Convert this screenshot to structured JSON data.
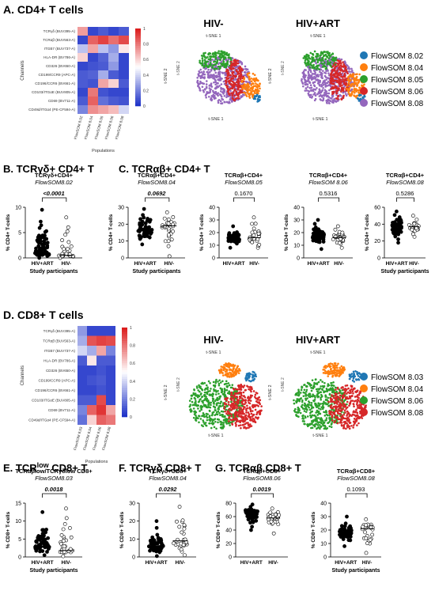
{
  "sections": {
    "A": "A. CD4+ T cells",
    "B": "B. TCRγδ+ CD4+ T",
    "C": "C. TCRαβ+ CD4+ T",
    "D": "D. CD8+ T cells",
    "E_pre": "E. TCR",
    "E_sup": "low",
    "E_post": " CD8+ T",
    "F": "F. TCRγδ CD8+ T",
    "G": "G. TCRαβ CD8+ T"
  },
  "heatmap_common": {
    "ylabel": "Channels",
    "xlabel": "Populations",
    "colorbar_ticks": [
      "1",
      "0.8",
      "0.6",
      "0.4",
      "0.2",
      "0"
    ]
  },
  "heatmap_cd4": {
    "rows": [
      "TCRγδ (BUV395-A)",
      "TCRαβ (BUV563-A)",
      "ITGB7 (BUV737-A)",
      "HLA-DR (BV786-A)",
      "CD326 (BV650-A)",
      "CD199/CCR9 (APC-A)",
      "CD196/CCR6 (BV661-A)",
      "CD103/ITGαE (BUV805-A)",
      "CD69 (BV711-A)",
      "CD49d/ITGα4 (PE-CF594-A)"
    ],
    "cols": [
      "FlowSOM 8.02",
      "FlowSOM 8.04",
      "FlowSOM 8.05",
      "FlowSOM 8.06",
      "FlowSOM 8.08"
    ],
    "values": [
      [
        0.72,
        0.05,
        0.1,
        0.05,
        0.1
      ],
      [
        0.05,
        0.85,
        0.92,
        0.82,
        0.9
      ],
      [
        0.35,
        0.7,
        0.35,
        0.25,
        0.55
      ],
      [
        0.6,
        0.05,
        0.12,
        0.3,
        0.05
      ],
      [
        0.05,
        0.08,
        0.1,
        0.25,
        0.05
      ],
      [
        0.1,
        0.12,
        0.3,
        0.1,
        0.05
      ],
      [
        0.1,
        0.08,
        0.7,
        0.6,
        0.1
      ],
      [
        0.05,
        0.8,
        0.08,
        0.05,
        0.05
      ],
      [
        0.1,
        0.85,
        0.15,
        0.1,
        0.08
      ],
      [
        0.2,
        0.75,
        0.7,
        0.65,
        0.4
      ]
    ]
  },
  "heatmap_cd8": {
    "rows": [
      "TCRγδ (BUV395-A)",
      "TCRαβ (BUV563-A)",
      "ITGB7 (BUV737-A)",
      "HLA-DR (BV786-A)",
      "CD326 (BV650-A)",
      "CD199/CCR9 (APC-A)",
      "CD196/CCR6 (BV661-A)",
      "CD103/ITGαE (BUV805-A)",
      "CD69 (BV711-A)",
      "CD49d/ITGα4 (PE-CF594-A)"
    ],
    "cols": [
      "FlowSOM 8.03",
      "FlowSOM 8.04",
      "FlowSOM 8.06",
      "FlowSOM 8.08"
    ],
    "values": [
      [
        0.25,
        0.05,
        0.05,
        0.05
      ],
      [
        0.3,
        0.88,
        0.92,
        0.9
      ],
      [
        0.4,
        0.3,
        0.7,
        0.2
      ],
      [
        0.1,
        0.55,
        0.1,
        0.1
      ],
      [
        0.05,
        0.05,
        0.08,
        0.05
      ],
      [
        0.05,
        0.08,
        0.1,
        0.05
      ],
      [
        0.05,
        0.05,
        0.08,
        0.05
      ],
      [
        0.1,
        0.1,
        0.9,
        0.05
      ],
      [
        0.2,
        0.85,
        0.95,
        0.7
      ],
      [
        0.15,
        0.6,
        0.85,
        0.8
      ]
    ]
  },
  "tsne_common": {
    "xlabel": "t-SNE 1",
    "ylabel": "t-SNE 2"
  },
  "tsne_cd4": [
    {
      "title": "HIV-"
    },
    {
      "title": "HIV+ART"
    }
  ],
  "tsne_cd8": [
    {
      "title": "HIV-"
    },
    {
      "title": "HIV+ART"
    }
  ],
  "legend_cd4": [
    {
      "label": "FlowSOM 8.02",
      "color": "#1f77b4"
    },
    {
      "label": "FlowSOM 8.04",
      "color": "#ff7f0e"
    },
    {
      "label": "FlowSOM 8.05",
      "color": "#2ca02c"
    },
    {
      "label": "FlowSOM 8.06",
      "color": "#d62728"
    },
    {
      "label": "FlowSOM 8.08",
      "color": "#9467bd"
    }
  ],
  "legend_cd8": [
    {
      "label": "FlowSOM 8.03",
      "color": "#1f77b4"
    },
    {
      "label": "FlowSOM 8.04",
      "color": "#ff7f0e"
    },
    {
      "label": "FlowSOM 8.06",
      "color": "#2ca02c"
    },
    {
      "label": "FlowSOM 8.08",
      "color": "#d62728"
    }
  ],
  "chart_data": [
    {
      "id": "B",
      "type": "scatter",
      "title": "TCRγδ+CD4+",
      "subtitle": "FlowSOM8.02",
      "pvalue": "<0.0001",
      "ylabel": "% CD4+ T-cells",
      "xlabel": "Study participants",
      "categories": [
        "HIV+ART",
        "HIV-"
      ],
      "ylim": [
        0,
        10
      ],
      "yticks": [
        0,
        5,
        10
      ],
      "n": [
        70,
        26
      ],
      "medians": [
        1.0,
        0.5
      ],
      "ranges": [
        [
          0.0,
          9.5
        ],
        [
          0.0,
          8.0
        ]
      ]
    },
    {
      "id": "C1",
      "type": "scatter",
      "title": "TCRαβ+CD4+",
      "subtitle": "FlowSOM8.04",
      "pvalue": "0.0692",
      "ylabel": "% CD4+ T-cells",
      "xlabel": "Study participants",
      "categories": [
        "HIV+ART",
        "HIV-"
      ],
      "ylim": [
        0,
        30
      ],
      "yticks": [
        0,
        10,
        20,
        30
      ],
      "n": [
        60,
        30
      ],
      "medians": [
        17,
        19
      ],
      "ranges": [
        [
          8,
          29
        ],
        [
          1,
          27
        ]
      ]
    },
    {
      "id": "C2",
      "type": "scatter",
      "title": "TCRαβ+CD4+",
      "subtitle": "FlowSOM8.05",
      "pvalue": "0.1670",
      "ylabel": "% CD4+ T-cells",
      "xlabel": "",
      "categories": [
        "HIV+ART",
        "HIV-"
      ],
      "ylim": [
        0,
        40
      ],
      "yticks": [
        0,
        10,
        20,
        30,
        40
      ],
      "n": [
        55,
        30
      ],
      "medians": [
        15,
        16
      ],
      "ranges": [
        [
          8,
          25
        ],
        [
          8,
          32
        ]
      ]
    },
    {
      "id": "C3",
      "type": "scatter",
      "title": "TCRαβ+CD4+",
      "subtitle": "FlowSOM 8.06",
      "pvalue": "0.5316",
      "ylabel": "% CD4+ T-cells",
      "xlabel": "",
      "categories": [
        "HIV+ART",
        "HIV-"
      ],
      "ylim": [
        0,
        40
      ],
      "yticks": [
        0,
        10,
        20,
        30,
        40
      ],
      "n": [
        60,
        30
      ],
      "medians": [
        17,
        16
      ],
      "ranges": [
        [
          7,
          30
        ],
        [
          8,
          25
        ]
      ]
    },
    {
      "id": "C4",
      "type": "scatter",
      "title": "TCRαβ+CD4+",
      "subtitle": "FlowSOM8.08",
      "pvalue": "0.5286",
      "ylabel": "% CD4+ T-cells",
      "xlabel": "Study participants",
      "categories": [
        "HIV+ART",
        "HIV-"
      ],
      "ylim": [
        0,
        60
      ],
      "yticks": [
        0,
        20,
        40,
        60
      ],
      "n": [
        60,
        30
      ],
      "medians": [
        37,
        37
      ],
      "ranges": [
        [
          18,
          55
        ],
        [
          25,
          50
        ]
      ]
    },
    {
      "id": "E",
      "type": "scatter",
      "title": "TCRαβlow/TCRγδlow CD8+",
      "subtitle": "FlowSOM8.03",
      "pvalue": "0.0018",
      "ylabel": "% CD8+ T-cells",
      "xlabel": "Study participants",
      "categories": [
        "HIV+ART",
        "HIV-"
      ],
      "ylim": [
        0,
        15
      ],
      "yticks": [
        0,
        5,
        10,
        15
      ],
      "n": [
        60,
        30
      ],
      "medians": [
        3.0,
        1.8
      ],
      "ranges": [
        [
          0.5,
          12.5
        ],
        [
          0.2,
          13.5
        ]
      ]
    },
    {
      "id": "F",
      "type": "scatter",
      "title": "TCRγδ+CD8+",
      "subtitle": "FlowSOM8.04",
      "pvalue": "0.0292",
      "ylabel": "% CD8+ T-cells",
      "xlabel": "",
      "categories": [
        "HIV+ART",
        "HIV-"
      ],
      "ylim": [
        0,
        30
      ],
      "yticks": [
        0,
        10,
        20,
        30
      ],
      "n": [
        60,
        30
      ],
      "medians": [
        6,
        9
      ],
      "ranges": [
        [
          0.5,
          20
        ],
        [
          1,
          28
        ]
      ]
    },
    {
      "id": "G1",
      "type": "scatter",
      "title": "TCRαβ+CD8+",
      "subtitle": "FlowSOM8.06",
      "pvalue": "0.0019",
      "ylabel": "% CD8+ T-cells",
      "xlabel": "",
      "categories": [
        "HIV+ART",
        "HIV-"
      ],
      "ylim": [
        0,
        80
      ],
      "yticks": [
        0,
        20,
        40,
        60,
        80
      ],
      "n": [
        60,
        30
      ],
      "medians": [
        65,
        58
      ],
      "ranges": [
        [
          40,
          78
        ],
        [
          35,
          72
        ]
      ]
    },
    {
      "id": "G2",
      "type": "scatter",
      "title": "TCRαβ+CD8+",
      "subtitle": "FlowSOM8.08",
      "pvalue": "0.1093",
      "ylabel": "% CD8+ T-cells",
      "xlabel": "Study participants",
      "categories": [
        "HIV+ART",
        "HIV-"
      ],
      "ylim": [
        0,
        40
      ],
      "yticks": [
        0,
        10,
        20,
        30,
        40
      ],
      "n": [
        60,
        30
      ],
      "medians": [
        18,
        21
      ],
      "ranges": [
        [
          8,
          30
        ],
        [
          3,
          28
        ]
      ]
    }
  ]
}
